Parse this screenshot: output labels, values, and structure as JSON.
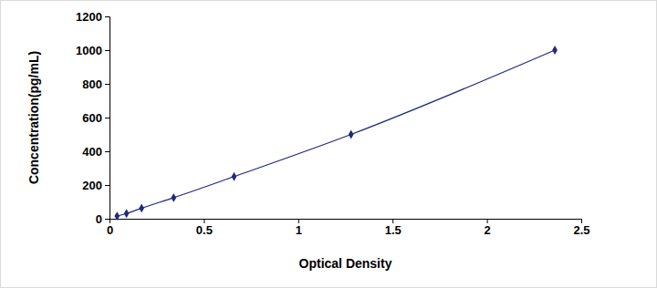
{
  "chart_data": {
    "type": "line",
    "x_label": "Optical Density",
    "y_label": "Concentration(pg/mL)",
    "x": [
      0.04,
      0.09,
      0.17,
      0.34,
      0.66,
      1.28,
      2.36
    ],
    "values": [
      15.6,
      31.2,
      62.5,
      125,
      250,
      500,
      1000
    ],
    "color": "#1f2a7c",
    "marker": "diamond",
    "xlim": [
      0,
      2.5
    ],
    "xticks": [
      0,
      0.5,
      1,
      1.5,
      2,
      2.5
    ],
    "ylim": [
      0,
      1200
    ],
    "yticks": [
      0,
      200,
      400,
      600,
      800,
      1000,
      1200
    ],
    "grid": false
  }
}
